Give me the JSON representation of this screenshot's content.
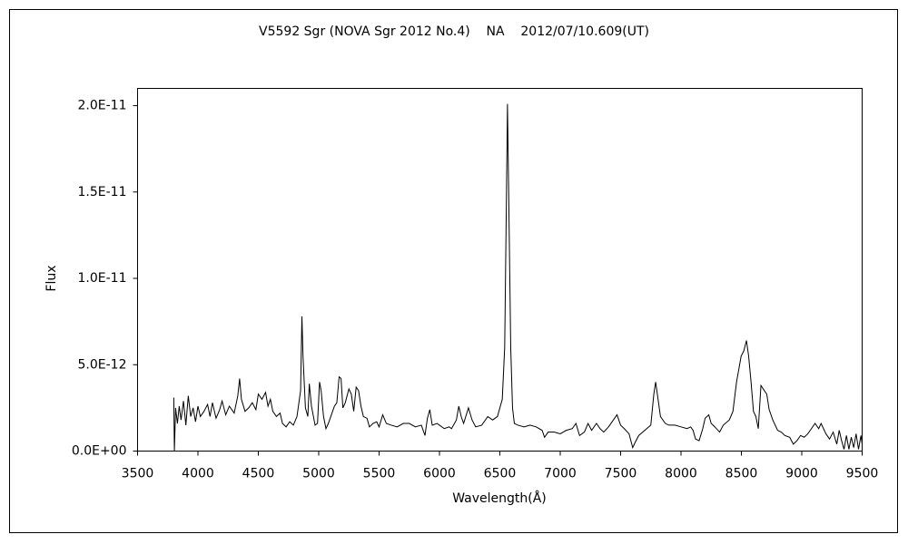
{
  "chart_data": {
    "type": "line",
    "title": "V5592 Sgr (NOVA Sgr 2012 No.4)    NA    2012/07/10.609(UT)",
    "xlabel": "Wavelength(Å)",
    "ylabel": "Flux",
    "color": "#000000",
    "xlim": [
      3500,
      9500
    ],
    "xticks": [
      3500,
      4000,
      4500,
      5000,
      5500,
      6000,
      6500,
      7000,
      7500,
      8000,
      8500,
      9000,
      9500
    ],
    "ylim": [
      0,
      2.1e-11
    ],
    "yticks": [
      {
        "value": 0,
        "label": "0.0E+00"
      },
      {
        "value": 5e-12,
        "label": "5.0E-12"
      },
      {
        "value": 1e-11,
        "label": "1.0E-11"
      },
      {
        "value": 1.5e-11,
        "label": "1.5E-11"
      },
      {
        "value": 2e-11,
        "label": "2.0E-11"
      }
    ],
    "x": [
      3800,
      3805,
      3815,
      3830,
      3845,
      3860,
      3880,
      3900,
      3920,
      3940,
      3960,
      3980,
      4000,
      4020,
      4050,
      4080,
      4100,
      4120,
      4150,
      4180,
      4200,
      4230,
      4260,
      4300,
      4330,
      4345,
      4360,
      4390,
      4420,
      4450,
      4480,
      4500,
      4530,
      4560,
      4580,
      4600,
      4620,
      4650,
      4680,
      4700,
      4730,
      4760,
      4790,
      4820,
      4850,
      4861,
      4870,
      4890,
      4910,
      4922,
      4940,
      4970,
      4990,
      5007,
      5020,
      5040,
      5060,
      5080,
      5100,
      5130,
      5150,
      5169,
      5185,
      5200,
      5220,
      5250,
      5270,
      5290,
      5310,
      5330,
      5350,
      5370,
      5400,
      5420,
      5450,
      5480,
      5500,
      5530,
      5560,
      5600,
      5650,
      5700,
      5750,
      5800,
      5850,
      5880,
      5900,
      5920,
      5940,
      5980,
      6000,
      6040,
      6080,
      6100,
      6140,
      6160,
      6180,
      6200,
      6240,
      6270,
      6300,
      6350,
      6400,
      6440,
      6480,
      6500,
      6520,
      6540,
      6555,
      6563,
      6575,
      6590,
      6605,
      6620,
      6650,
      6700,
      6750,
      6800,
      6850,
      6870,
      6900,
      6950,
      7000,
      7050,
      7100,
      7130,
      7160,
      7200,
      7230,
      7260,
      7300,
      7330,
      7360,
      7400,
      7450,
      7470,
      7500,
      7530,
      7570,
      7600,
      7620,
      7650,
      7700,
      7750,
      7775,
      7790,
      7810,
      7830,
      7870,
      7900,
      7950,
      8000,
      8050,
      8080,
      8100,
      8120,
      8150,
      8180,
      8200,
      8230,
      8250,
      8280,
      8320,
      8350,
      8400,
      8430,
      8460,
      8498,
      8520,
      8542,
      8560,
      8580,
      8600,
      8620,
      8640,
      8662,
      8690,
      8710,
      8730,
      8760,
      8800,
      8830,
      8860,
      8900,
      8930,
      8960,
      8990,
      9020,
      9050,
      9080,
      9110,
      9140,
      9160,
      9200,
      9230,
      9260,
      9290,
      9310,
      9330,
      9350,
      9370,
      9390,
      9410,
      9430,
      9450,
      9470,
      9490,
      9500
    ],
    "values": [
      3.1e-12,
      0,
      2.5e-12,
      1.6e-12,
      2.6e-12,
      1.8e-12,
      2.9e-12,
      1.5e-12,
      3.2e-12,
      2e-12,
      2.5e-12,
      1.7e-12,
      2.6e-12,
      2e-12,
      2.3e-12,
      2.7e-12,
      2e-12,
      2.8e-12,
      1.9e-12,
      2.4e-12,
      2.9e-12,
      2.1e-12,
      2.6e-12,
      2.2e-12,
      3.2e-12,
      4.2e-12,
      3e-12,
      2.3e-12,
      2.5e-12,
      2.8e-12,
      2.4e-12,
      3.3e-12,
      3e-12,
      3.4e-12,
      2.6e-12,
      3e-12,
      2.3e-12,
      2e-12,
      2.2e-12,
      1.6e-12,
      1.4e-12,
      1.7e-12,
      1.5e-12,
      2e-12,
      3.5e-12,
      7.8e-12,
      5.5e-12,
      2.5e-12,
      2e-12,
      3.9e-12,
      2.6e-12,
      1.5e-12,
      1.6e-12,
      4e-12,
      3.5e-12,
      2e-12,
      1.3e-12,
      1.6e-12,
      2e-12,
      2.6e-12,
      2.8e-12,
      4.3e-12,
      4.2e-12,
      2.5e-12,
      2.8e-12,
      3.6e-12,
      3.3e-12,
      2.3e-12,
      3.7e-12,
      3.5e-12,
      2.6e-12,
      2e-12,
      1.9e-12,
      1.4e-12,
      1.6e-12,
      1.7e-12,
      1.4e-12,
      2.1e-12,
      1.6e-12,
      1.5e-12,
      1.4e-12,
      1.6e-12,
      1.6e-12,
      1.4e-12,
      1.5e-12,
      9e-13,
      1.9e-12,
      2.4e-12,
      1.5e-12,
      1.6e-12,
      1.5e-12,
      1.3e-12,
      1.4e-12,
      1.3e-12,
      1.8e-12,
      2.6e-12,
      2e-12,
      1.6e-12,
      2.5e-12,
      1.8e-12,
      1.4e-12,
      1.5e-12,
      2e-12,
      1.8e-12,
      2e-12,
      2.5e-12,
      3e-12,
      6e-12,
      1.5e-11,
      2.01e-11,
      1.4e-11,
      6e-12,
      2.5e-12,
      1.6e-12,
      1.5e-12,
      1.4e-12,
      1.5e-12,
      1.4e-12,
      1.2e-12,
      8e-13,
      1.1e-12,
      1.1e-12,
      1e-12,
      1.2e-12,
      1.3e-12,
      1.6e-12,
      9e-13,
      1.1e-12,
      1.6e-12,
      1.2e-12,
      1.6e-12,
      1.3e-12,
      1.1e-12,
      1.4e-12,
      1.9e-12,
      2.1e-12,
      1.5e-12,
      1.3e-12,
      1e-12,
      2e-13,
      5e-13,
      9e-13,
      1.2e-12,
      1.5e-12,
      3.3e-12,
      4e-12,
      3e-12,
      2e-12,
      1.6e-12,
      1.5e-12,
      1.5e-12,
      1.4e-12,
      1.3e-12,
      1.4e-12,
      1.2e-12,
      7e-13,
      6e-13,
      1.3e-12,
      1.9e-12,
      2.1e-12,
      1.6e-12,
      1.4e-12,
      1.1e-12,
      1.5e-12,
      1.8e-12,
      2.3e-12,
      4e-12,
      5.5e-12,
      5.8e-12,
      6.4e-12,
      5.5e-12,
      4e-12,
      2.3e-12,
      2e-12,
      1.3e-12,
      3.8e-12,
      3.5e-12,
      3.3e-12,
      2.4e-12,
      1.8e-12,
      1.2e-12,
      1.1e-12,
      9e-13,
      8e-13,
      4e-13,
      6e-13,
      9e-13,
      8e-13,
      1e-12,
      1.3e-12,
      1.6e-12,
      1.3e-12,
      1.6e-12,
      1e-12,
      7e-13,
      1.1e-12,
      4e-13,
      1.2e-12,
      6e-13,
      1e-13,
      9e-13,
      1e-13,
      8e-13,
      2e-13,
      1e-12,
      1e-13,
      9e-13,
      4e-13
    ]
  }
}
